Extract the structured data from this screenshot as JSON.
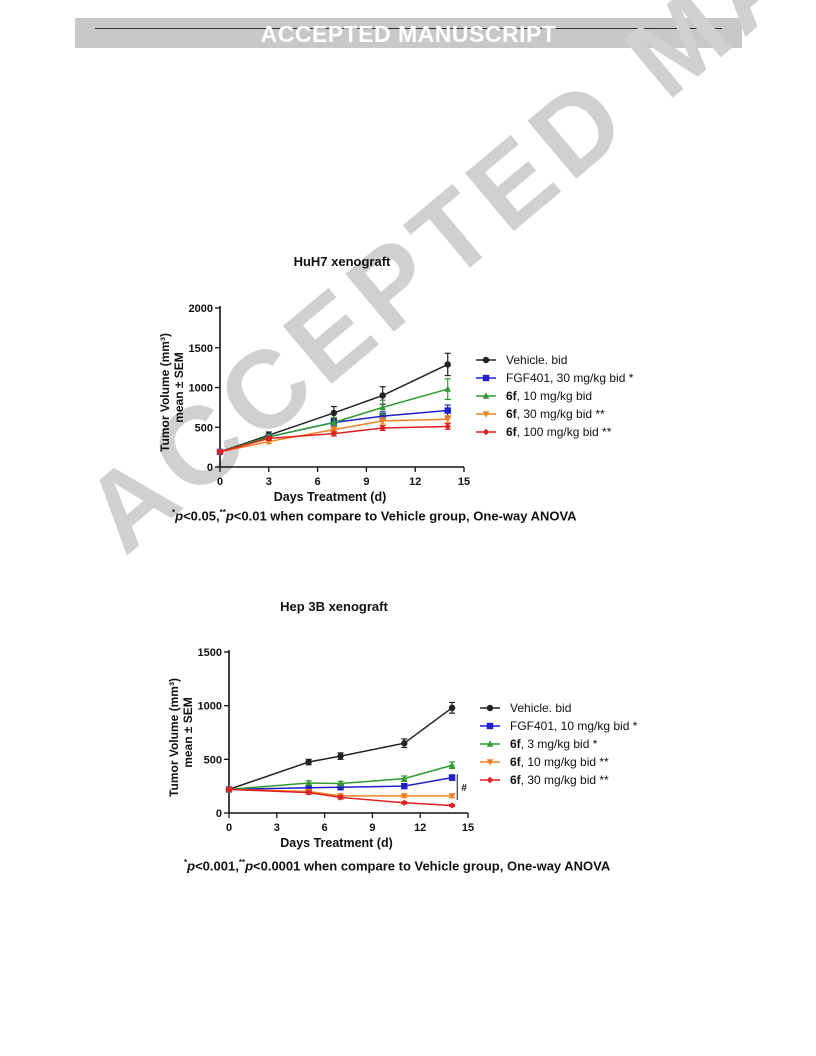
{
  "banner": {
    "text": "ACCEPTED MANUSCRIPT"
  },
  "watermark": {
    "text": "ACCEPTED MANUSCRIPT"
  },
  "chart_data": [
    {
      "type": "line",
      "title": "HuH7 xenograft",
      "xlabel": "Days Treatment (d)",
      "ylabel_line1": "Tumor Volume (mm³)",
      "ylabel_line2": "mean ± SEM",
      "xlim": [
        0,
        15
      ],
      "ylim": [
        0,
        2000
      ],
      "xticks": [
        0,
        3,
        6,
        9,
        12,
        15
      ],
      "yticks": [
        0,
        500,
        1000,
        1500,
        2000
      ],
      "grid": false,
      "legend_position": "right",
      "footnote_parts": [
        "*",
        "p",
        "<0.05,",
        "**",
        "p",
        "<0.01 when compare to Vehicle group, One-way ANOVA"
      ],
      "series": [
        {
          "name": "Vehicle. bid",
          "prefix": "",
          "color": "#222222",
          "marker": "circle",
          "x": [
            0,
            3,
            7,
            10,
            14
          ],
          "y": [
            190,
            400,
            680,
            900,
            1290
          ],
          "err": [
            20,
            40,
            80,
            110,
            140
          ]
        },
        {
          "name": "FGF401,  30 mg/kg bid *",
          "prefix": "",
          "color": "#1f1fcc",
          "marker": "square",
          "x": [
            0,
            3,
            7,
            10,
            14
          ],
          "y": [
            190,
            380,
            560,
            640,
            710
          ],
          "err": [
            20,
            35,
            50,
            55,
            70
          ]
        },
        {
          "name": ", 10 mg/kg   bid",
          "prefix": "6f",
          "color": "#2e9b2e",
          "marker": "triangle-up",
          "x": [
            0,
            3,
            7,
            10,
            14
          ],
          "y": [
            190,
            380,
            560,
            750,
            980
          ],
          "err": [
            20,
            30,
            60,
            90,
            130
          ]
        },
        {
          "name": ",    30 mg/kg   bid **",
          "prefix": "6f",
          "color": "#f08020",
          "marker": "triangle-down",
          "x": [
            0,
            3,
            7,
            10,
            14
          ],
          "y": [
            190,
            320,
            470,
            580,
            600
          ],
          "err": [
            20,
            25,
            35,
            40,
            45
          ]
        },
        {
          "name": ", 100 mg/kg   bid **",
          "prefix": "6f",
          "color": "#e02020",
          "marker": "diamond",
          "x": [
            0,
            3,
            7,
            10,
            14
          ],
          "y": [
            190,
            360,
            420,
            490,
            510
          ],
          "err": [
            20,
            25,
            30,
            30,
            35
          ]
        }
      ]
    },
    {
      "type": "line",
      "title": "Hep 3B xenograft",
      "xlabel": "Days Treatment (d)",
      "ylabel_line1": "Tumor Volume (mm³)",
      "ylabel_line2": "mean ± SEM",
      "xlim": [
        0,
        15
      ],
      "ylim": [
        0,
        1500
      ],
      "xticks": [
        0,
        3,
        6,
        9,
        12,
        15
      ],
      "yticks": [
        0,
        500,
        1000,
        1500
      ],
      "grid": false,
      "legend_position": "right",
      "annotation": "#",
      "footnote_parts": [
        "*",
        "p",
        "<0.001,",
        "**",
        "p",
        "<0.0001 when compare to Vehicle group, One-way ANOVA"
      ],
      "series": [
        {
          "name": "Vehicle. bid",
          "prefix": "",
          "color": "#222222",
          "marker": "circle",
          "x": [
            0,
            5,
            7,
            11,
            14
          ],
          "y": [
            220,
            475,
            530,
            650,
            980
          ],
          "err": [
            15,
            25,
            30,
            40,
            50
          ]
        },
        {
          "name": "FGF401, 10 mg/kg bid *",
          "prefix": "",
          "color": "#1f1fcc",
          "marker": "square",
          "x": [
            0,
            5,
            7,
            11,
            14
          ],
          "y": [
            220,
            235,
            240,
            250,
            330
          ],
          "err": [
            15,
            15,
            15,
            20,
            25
          ]
        },
        {
          "name": ",  3 mg/kg   bid *",
          "prefix": "6f",
          "color": "#2e9b2e",
          "marker": "triangle-up",
          "x": [
            0,
            5,
            7,
            11,
            14
          ],
          "y": [
            220,
            280,
            275,
            320,
            445
          ],
          "err": [
            15,
            20,
            20,
            25,
            30
          ]
        },
        {
          "name": ",  10 mg/kg   bid **",
          "prefix": "6f",
          "color": "#f08020",
          "marker": "triangle-down",
          "x": [
            0,
            5,
            7,
            11,
            14
          ],
          "y": [
            220,
            200,
            160,
            160,
            160
          ],
          "err": [
            15,
            15,
            15,
            15,
            15
          ]
        },
        {
          "name": ",  30 mg/kg   bid **",
          "prefix": "6f",
          "color": "#e02020",
          "marker": "diamond",
          "x": [
            0,
            5,
            7,
            11,
            14
          ],
          "y": [
            220,
            190,
            145,
            95,
            70
          ],
          "err": [
            15,
            15,
            15,
            10,
            10
          ]
        }
      ]
    }
  ]
}
